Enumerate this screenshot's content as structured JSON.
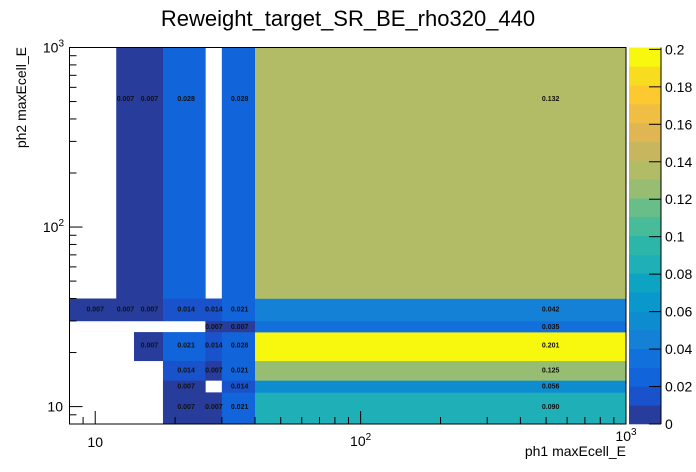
{
  "chart_data": {
    "type": "heatmap",
    "title": "Reweight_target_SR_BE_rho320_440",
    "xlabel": "ph1 maxEcell_E",
    "ylabel": "ph2 maxEcell_E",
    "x_scale": "log",
    "y_scale": "log",
    "xlim": [
      8,
      1000
    ],
    "ylim": [
      8,
      1000
    ],
    "x_edges": [
      8,
      12,
      14,
      18,
      26,
      30,
      40,
      1000
    ],
    "y_edges": [
      8,
      12,
      14,
      18,
      26,
      30,
      40,
      1000
    ],
    "values_rows_bottom_to_top": [
      [
        null,
        null,
        null,
        0.007,
        0.007,
        0.021,
        0.09
      ],
      [
        null,
        null,
        null,
        0.007,
        null,
        0.014,
        0.056
      ],
      [
        null,
        null,
        null,
        0.014,
        0.007,
        0.021,
        0.125
      ],
      [
        null,
        null,
        0.007,
        0.021,
        0.014,
        0.028,
        0.201
      ],
      [
        null,
        null,
        null,
        null,
        0.007,
        0.007,
        0.035
      ],
      [
        0.007,
        0.007,
        0.007,
        0.014,
        0.014,
        0.021,
        0.042
      ],
      [
        null,
        0.007,
        0.007,
        0.028,
        null,
        0.028,
        0.132
      ]
    ],
    "x_tick_labels": [
      {
        "value": 10,
        "base": "10",
        "exp": ""
      },
      {
        "value": 100,
        "base": "10",
        "exp": "2"
      },
      {
        "value": 1000,
        "base": "10",
        "exp": "3"
      }
    ],
    "y_tick_labels": [
      {
        "value": 10,
        "base": "10",
        "exp": ""
      },
      {
        "value": 100,
        "base": "10",
        "exp": "2"
      },
      {
        "value": 1000,
        "base": "10",
        "exp": "3"
      }
    ],
    "colorbar": {
      "range": [
        0,
        0.201
      ],
      "levels": 20,
      "tick_labels": [
        "0",
        "0.02",
        "0.04",
        "0.06",
        "0.08",
        "0.1",
        "0.12",
        "0.14",
        "0.16",
        "0.18",
        "0.2"
      ],
      "palette": [
        "#283c9c",
        "#1a52cc",
        "#1264da",
        "#1270dc",
        "#1480d6",
        "#0e8cd0",
        "#0898cc",
        "#0ca4c2",
        "#1eb0b6",
        "#2cb6a8",
        "#48bb98",
        "#68bd88",
        "#96bd72",
        "#b2bc66",
        "#c8b65e",
        "#e0b652",
        "#f0be42",
        "#fcca30",
        "#f8dc20",
        "#f8f80e"
      ]
    },
    "grid": false,
    "legend": "none"
  }
}
